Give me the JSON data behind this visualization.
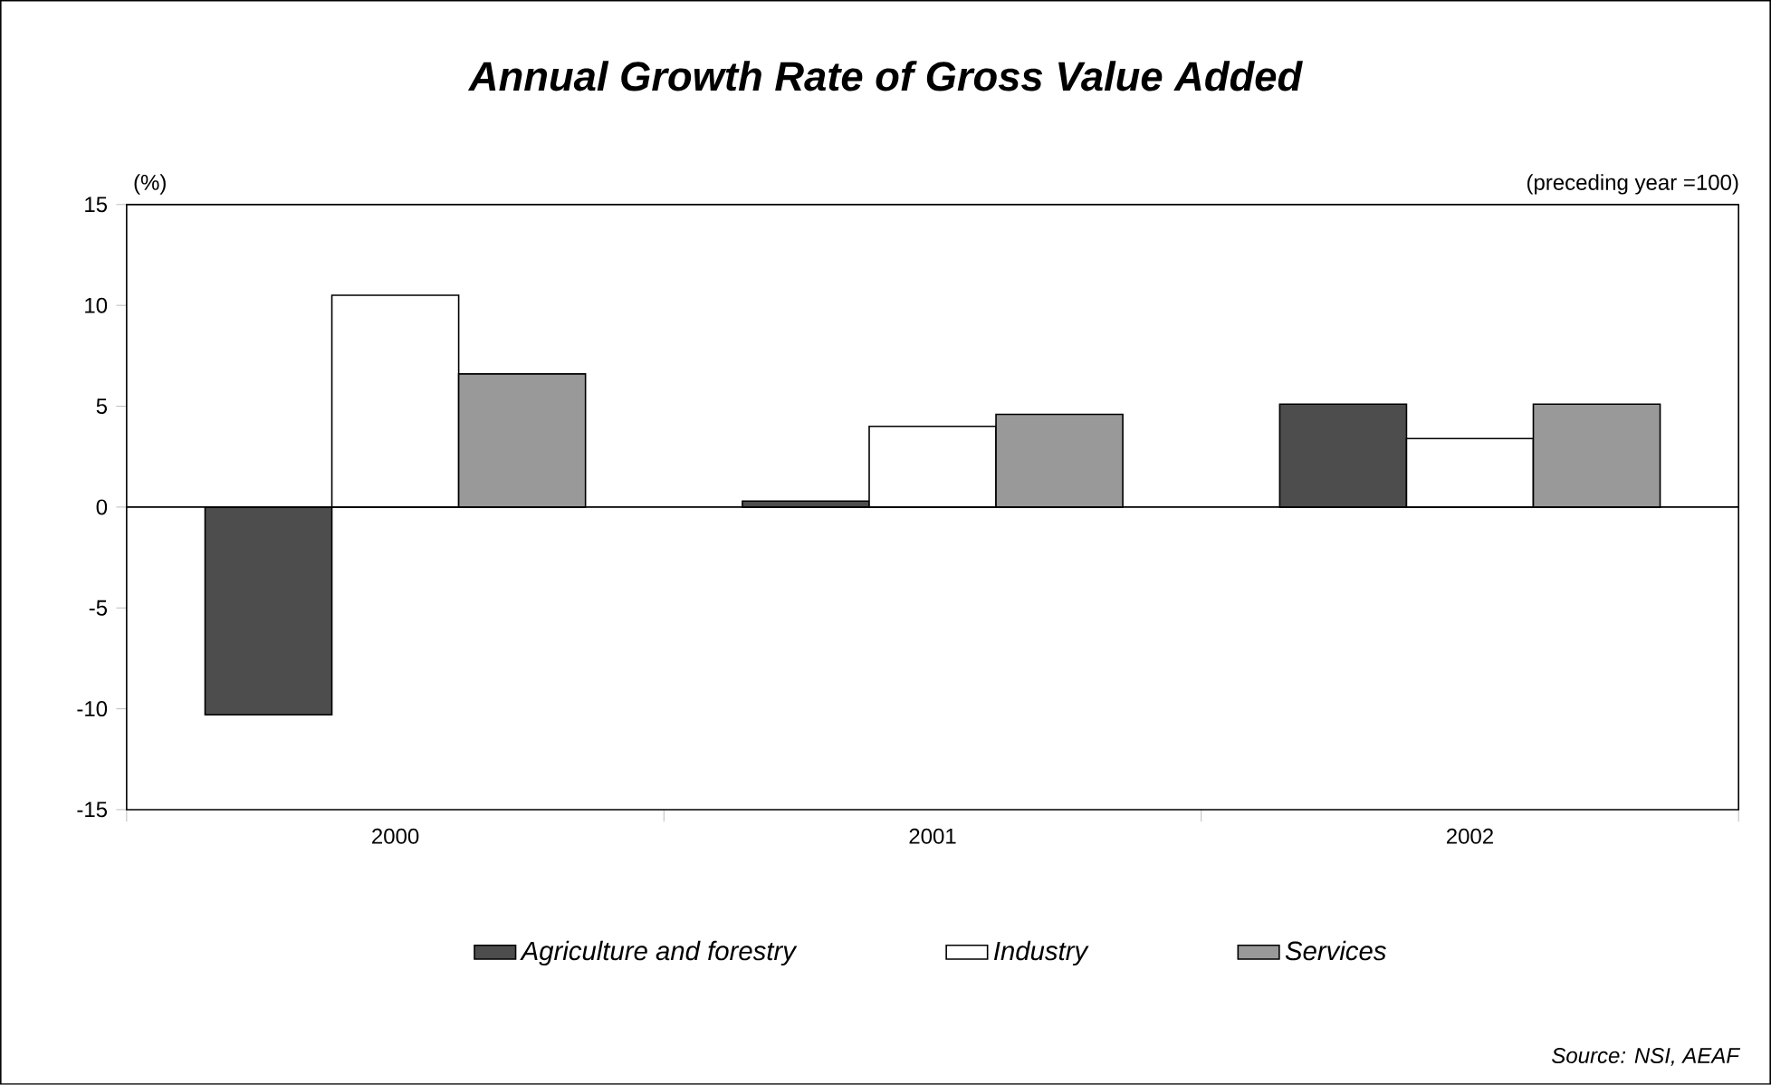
{
  "chart_data": {
    "type": "bar",
    "title": "Annual Growth Rate of Gross Value Added",
    "categories": [
      "2000",
      "2001",
      "2002"
    ],
    "series": [
      {
        "name": "Agriculture and forestry",
        "color": "#4d4d4d",
        "values": [
          -10.3,
          0.3,
          5.1
        ]
      },
      {
        "name": "Industry",
        "color": "#ffffff",
        "values": [
          10.5,
          4.0,
          3.4
        ]
      },
      {
        "name": "Services",
        "color": "#999999",
        "values": [
          6.6,
          4.6,
          5.1
        ]
      }
    ],
    "ylim": [
      -15,
      15
    ],
    "yticks": [
      -15,
      -10,
      -5,
      0,
      5,
      10,
      15
    ],
    "legend": "bottom",
    "ref_lines": [
      {
        "axis": "y",
        "value": 0,
        "color": "#000000"
      }
    ],
    "annotations": [
      "(%)",
      "(preceding year =100)",
      "Source: NSI, AEAF"
    ]
  }
}
